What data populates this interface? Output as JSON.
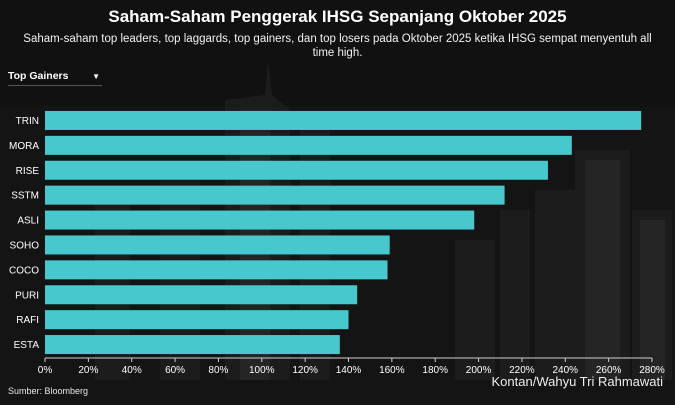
{
  "header": {
    "title": "Saham-Saham Penggerak IHSG Sepanjang Oktober 2025",
    "subtitle": "Saham-saham top leaders, top laggards, top gainers, dan top losers pada Oktober 2025 ketika IHSG sempat menyentuh all time high."
  },
  "filter": {
    "selected": "Top Gainers"
  },
  "footer": {
    "source": "Sumber: Bloomberg",
    "credit": "Kontan/Wahyu Tri Rahmawati"
  },
  "colors": {
    "bar": "#46c8cc",
    "background": "#111111"
  },
  "chart_data": {
    "type": "bar",
    "orientation": "horizontal",
    "categories": [
      "TRIN",
      "MORA",
      "RISE",
      "SSTM",
      "ASLI",
      "SOHO",
      "COCO",
      "PURI",
      "RAFI",
      "ESTA"
    ],
    "values": [
      275,
      243,
      232,
      212,
      198,
      159,
      158,
      144,
      140,
      136
    ],
    "xlim": [
      0,
      280
    ],
    "xticks": [
      "0%",
      "20%",
      "40%",
      "60%",
      "80%",
      "100%",
      "120%",
      "140%",
      "160%",
      "180%",
      "200%",
      "220%",
      "240%",
      "260%",
      "280%"
    ],
    "grid": false
  }
}
